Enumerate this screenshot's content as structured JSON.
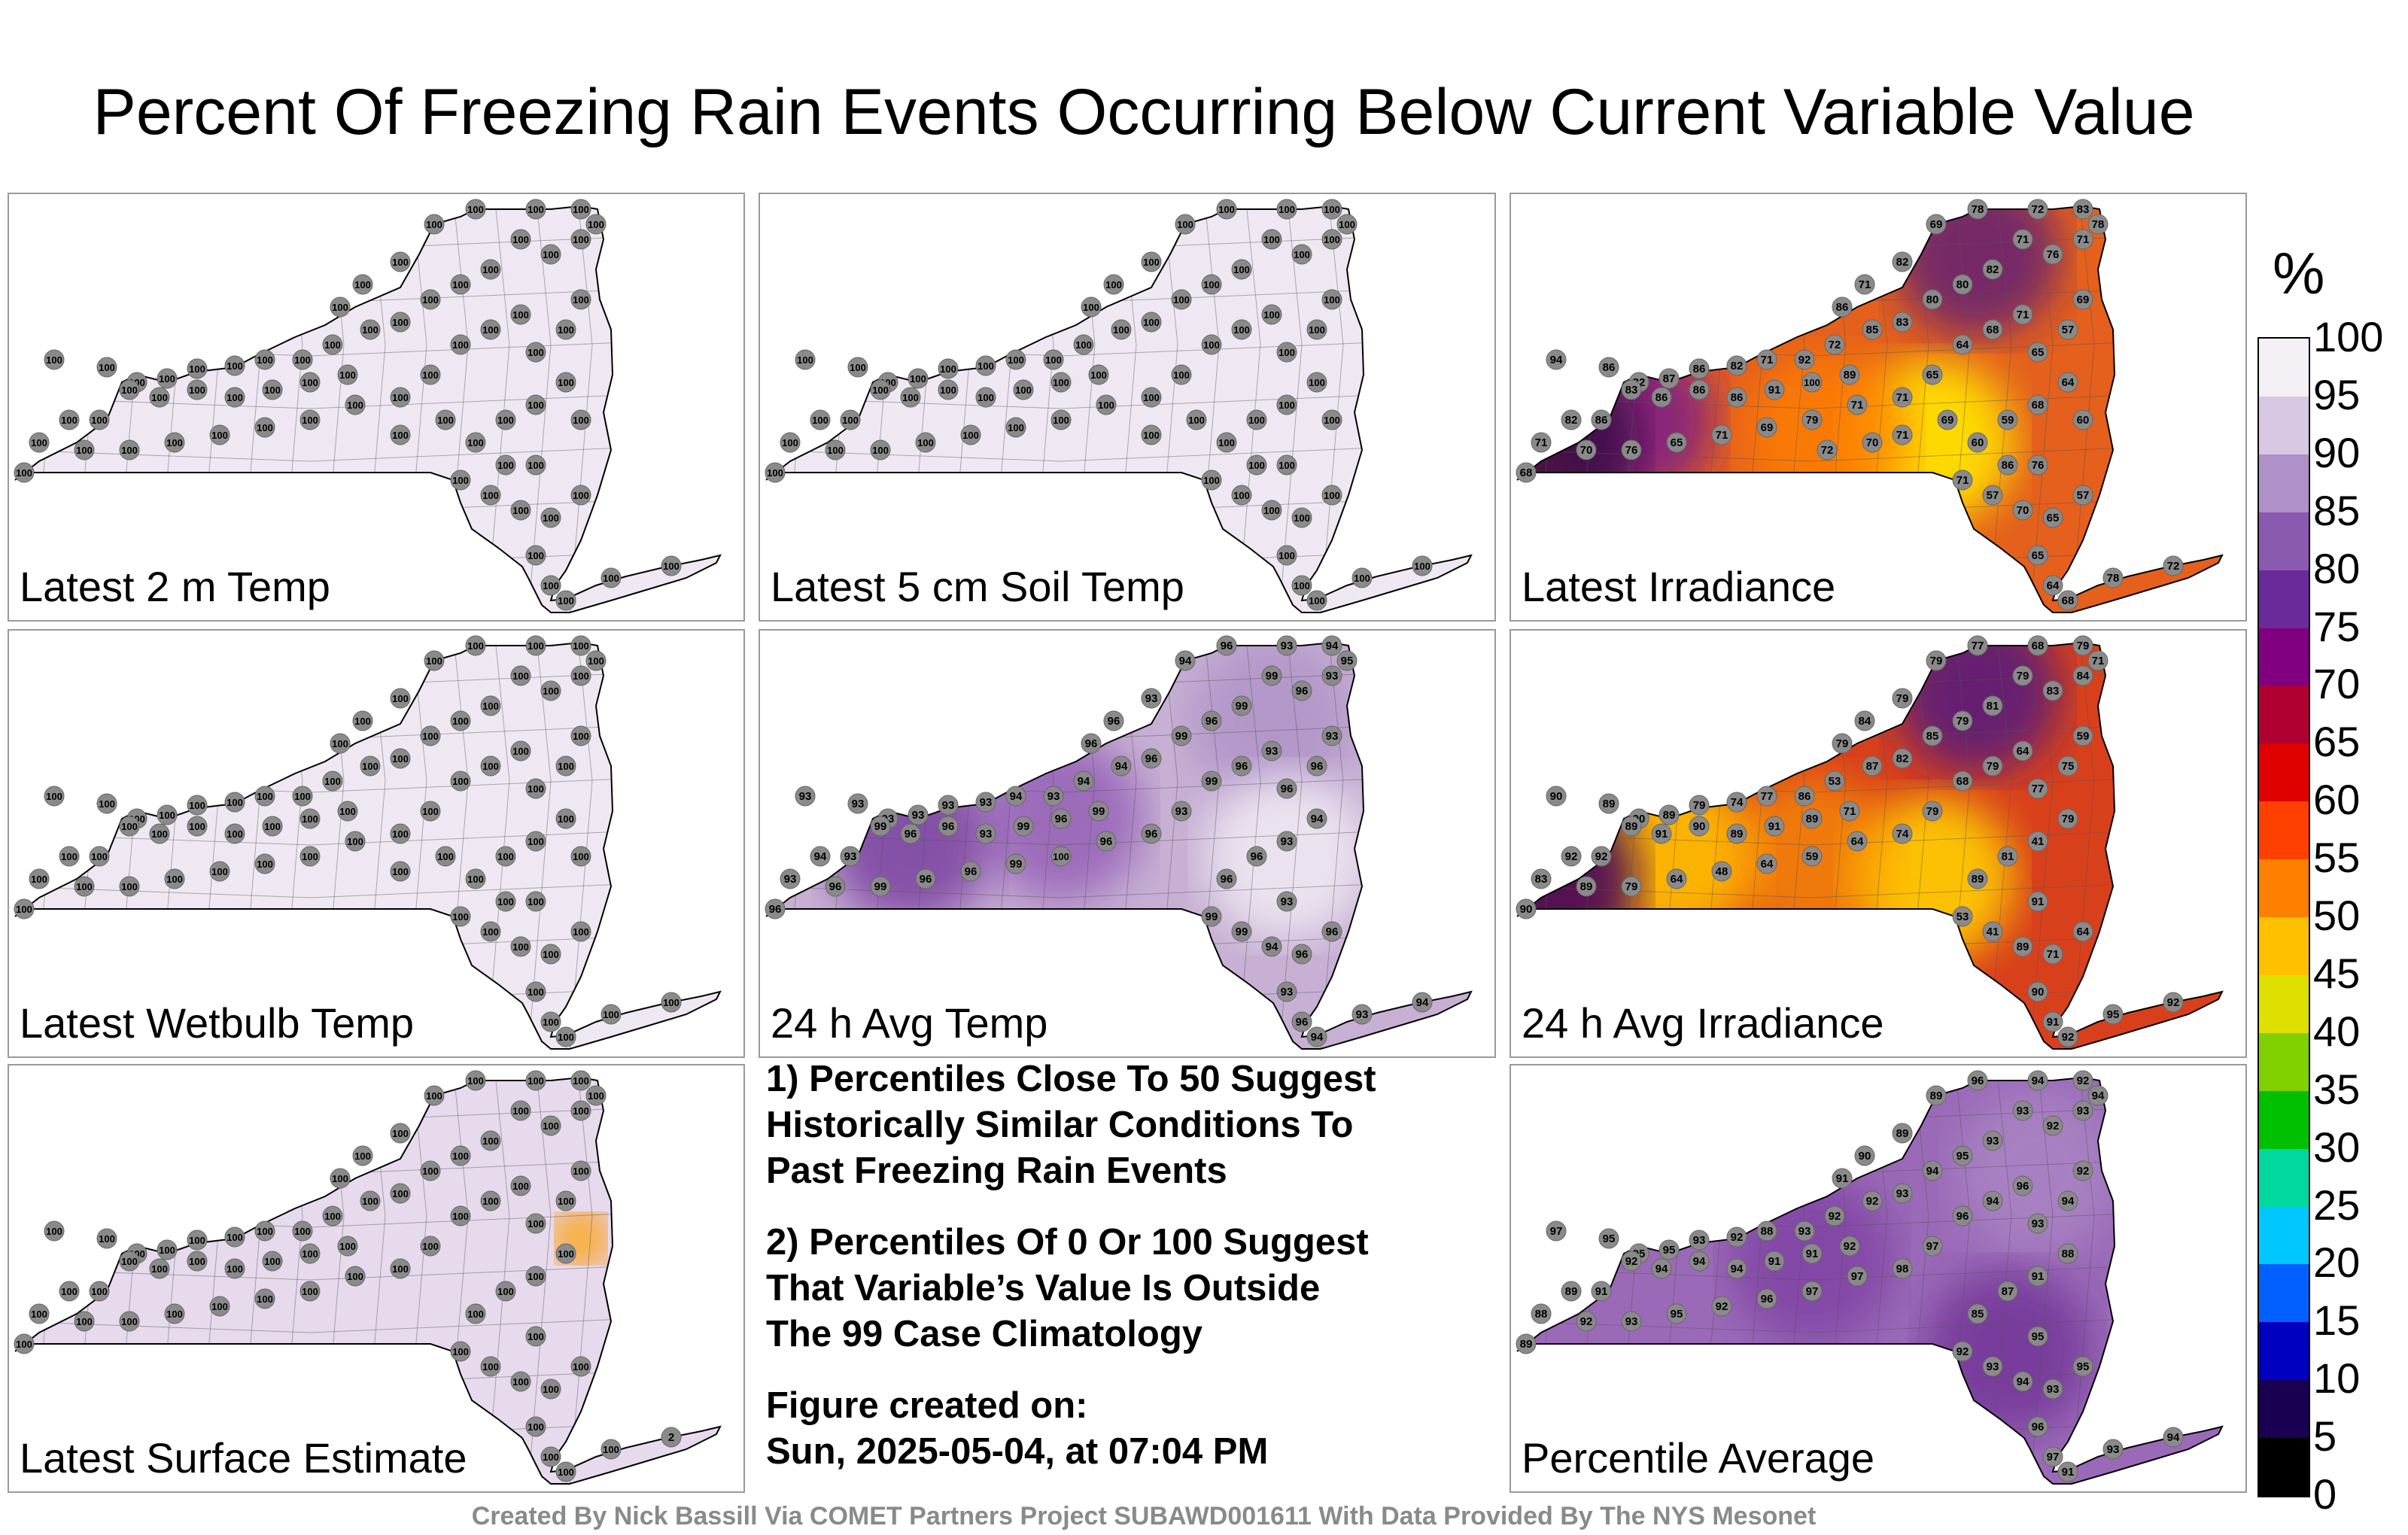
{
  "title": "Percent Of Freezing Rain Events Occurring Below Current Variable Value",
  "panels": [
    {
      "id": "p1",
      "label": "Latest 2 m Temp",
      "fill": "#efe8f2",
      "hot": null
    },
    {
      "id": "p2",
      "label": "Latest 5 cm Soil Temp",
      "fill": "#efe8f2",
      "hot": null
    },
    {
      "id": "p3",
      "label": "Latest Irradiance",
      "fill": "#e4601c",
      "hot": "irr"
    },
    {
      "id": "p4",
      "label": "Latest Wetbulb Temp",
      "fill": "#efe8f2",
      "hot": null
    },
    {
      "id": "p5",
      "label": "24 h Avg Temp",
      "fill": "#c7b0d4",
      "hot": "avg"
    },
    {
      "id": "p6",
      "label": "24 h Avg Irradiance",
      "fill": "#d8401c",
      "hot": "irr2"
    },
    {
      "id": "p7",
      "label": "Latest Surface Estimate",
      "fill": "#e6daec",
      "hot": "surf"
    },
    {
      "id": "p8",
      "label": "Percentile Average",
      "fill": "#9a6ab8",
      "hot": "pavg"
    }
  ],
  "station_values": {
    "p1": [
      "100",
      "100",
      "100",
      "100",
      "100",
      "100",
      "100",
      "100",
      "100",
      "100",
      "100",
      "100",
      "100",
      "100",
      "100",
      "100",
      "100",
      "100",
      "100",
      "100",
      "100",
      "100",
      "100",
      "100",
      "100",
      "100",
      "100",
      "100",
      "100",
      "100",
      "100",
      "100",
      "100",
      "100",
      "100",
      "100",
      "100",
      "100",
      "100",
      "100",
      "100",
      "100",
      "100",
      "100",
      "100",
      "100",
      "100",
      "100",
      "100",
      "100",
      "100",
      "100",
      "100",
      "100",
      "100",
      "100",
      "100",
      "100",
      "100",
      "100",
      "100",
      "100",
      "100",
      "100",
      "100",
      "100",
      "100",
      "100",
      "100",
      "100"
    ],
    "p2": [
      "100",
      "100",
      "100",
      "100",
      "100",
      "100",
      "100",
      "100",
      "100",
      "100",
      "100",
      "100",
      "100",
      "100",
      "100",
      "100",
      "100",
      "100",
      "100",
      "100",
      "100",
      "100",
      "100",
      "100",
      "100",
      "100",
      "100",
      "100",
      "100",
      "100",
      "100",
      "100",
      "100",
      "100",
      "100",
      "100",
      "100",
      "100",
      "100",
      "100",
      "100",
      "100",
      "100",
      "100",
      "100",
      "100",
      "100",
      "100",
      "100",
      "100",
      "100",
      "100",
      "100",
      "100",
      "100",
      "100",
      "100",
      "100",
      "100",
      "100",
      "100",
      "100",
      "100",
      "100",
      "100",
      "100",
      "100",
      "100",
      "100",
      "100"
    ],
    "p3": [
      "94",
      "86",
      "82",
      "87",
      "86",
      "82",
      "71",
      "92",
      "72",
      "86",
      "71",
      "82",
      "69",
      "78",
      "72",
      "83",
      "78",
      "71",
      "76",
      "71",
      "82",
      "80",
      "80",
      "83",
      "85",
      "89",
      "100",
      "91",
      "86",
      "86",
      "86",
      "83",
      "86",
      "82",
      "71",
      "68",
      "70",
      "76",
      "65",
      "71",
      "69",
      "79",
      "71",
      "71",
      "65",
      "64",
      "68",
      "71",
      "65",
      "57",
      "69",
      "64",
      "68",
      "59",
      "60",
      "71",
      "57",
      "70",
      "65",
      "57",
      "65",
      "64",
      "68",
      "78",
      "72",
      "76",
      "86",
      "69",
      "71",
      "60",
      "70",
      "72",
      "68",
      "71",
      "86",
      "65",
      "57",
      "71"
    ],
    "p4": [
      "100",
      "100",
      "100",
      "100",
      "100",
      "100",
      "100",
      "100",
      "100",
      "100",
      "100",
      "100",
      "100",
      "100",
      "100",
      "100",
      "100",
      "100",
      "100",
      "100",
      "100",
      "100",
      "100",
      "100",
      "100",
      "100",
      "100",
      "100",
      "100",
      "100",
      "100",
      "100",
      "100",
      "100",
      "100",
      "100",
      "100",
      "100",
      "100",
      "100",
      "100",
      "100",
      "100",
      "100",
      "100",
      "100",
      "100",
      "100",
      "100",
      "100",
      "100",
      "100",
      "100",
      "100",
      "100",
      "100",
      "100",
      "100",
      "100",
      "100",
      "100",
      "100",
      "100",
      "100",
      "100",
      "100",
      "100",
      "100",
      "100",
      "100"
    ],
    "p5": [
      "93",
      "93",
      "93",
      "93",
      "93",
      "93",
      "94",
      "93",
      "94",
      "96",
      "96",
      "93",
      "94",
      "96",
      "93",
      "94",
      "95",
      "93",
      "96",
      "99",
      "99",
      "96",
      "99",
      "96",
      "94",
      "99",
      "96",
      "99",
      "93",
      "96",
      "96",
      "99",
      "93",
      "94",
      "93",
      "96",
      "96",
      "99",
      "96",
      "96",
      "99",
      "100",
      "96",
      "96",
      "93",
      "99",
      "96",
      "93",
      "96",
      "96",
      "93",
      "94",
      "93",
      "96",
      "96",
      "99",
      "99",
      "94",
      "96",
      "96",
      "93",
      "96",
      "94",
      "93",
      "94",
      "93"
    ],
    "p6": [
      "90",
      "89",
      "90",
      "89",
      "79",
      "74",
      "77",
      "86",
      "53",
      "79",
      "84",
      "79",
      "79",
      "77",
      "68",
      "79",
      "71",
      "84",
      "83",
      "79",
      "81",
      "79",
      "85",
      "82",
      "87",
      "71",
      "89",
      "91",
      "89",
      "90",
      "91",
      "89",
      "92",
      "92",
      "83",
      "90",
      "89",
      "79",
      "64",
      "48",
      "64",
      "59",
      "64",
      "74",
      "79",
      "68",
      "79",
      "64",
      "77",
      "75",
      "59",
      "79",
      "41",
      "81",
      "89",
      "53",
      "41",
      "89",
      "71",
      "64",
      "90",
      "91",
      "92",
      "95",
      "92",
      "91"
    ],
    "p7": [
      "100",
      "100",
      "100",
      "100",
      "100",
      "100",
      "100",
      "100",
      "100",
      "100",
      "100",
      "100",
      "100",
      "100",
      "100",
      "100",
      "100",
      "100",
      "100",
      "100",
      "100",
      "100",
      "100",
      "100",
      "100",
      "100",
      "100",
      "100",
      "100",
      "100",
      "100",
      "100",
      "100",
      "100",
      "100",
      "100",
      "100",
      "100",
      "100",
      "100",
      "100",
      "100",
      "100",
      "100",
      "100",
      "100",
      "100",
      "100",
      "100",
      "100",
      "100",
      "100",
      "100",
      "100",
      "100",
      "100",
      "100",
      "100",
      "100",
      "100",
      "100",
      "100",
      "100",
      "100",
      "2",
      "100"
    ],
    "p8": [
      "97",
      "95",
      "95",
      "95",
      "93",
      "92",
      "88",
      "93",
      "92",
      "91",
      "90",
      "89",
      "89",
      "96",
      "94",
      "92",
      "94",
      "93",
      "92",
      "93",
      "93",
      "95",
      "94",
      "93",
      "92",
      "92",
      "91",
      "91",
      "94",
      "94",
      "94",
      "92",
      "91",
      "89",
      "88",
      "89",
      "92",
      "93",
      "95",
      "92",
      "96",
      "97",
      "97",
      "98",
      "97",
      "96",
      "94",
      "96",
      "93",
      "94",
      "92",
      "88",
      "91",
      "87",
      "85",
      "92",
      "93",
      "94",
      "93",
      "95",
      "96",
      "97",
      "91",
      "93",
      "94",
      "95"
    ]
  },
  "notes": {
    "line1": "1) Percentiles Close To 50 Suggest",
    "line2": "Historically Similar Conditions To",
    "line3": "Past Freezing Rain Events",
    "line4": "2) Percentiles Of 0 Or 100 Suggest",
    "line5": "That Variable’s Value Is Outside",
    "line6": "The 99 Case Climatology",
    "line7": "Figure created on:",
    "line8": "Sun, 2025-05-04, at 07:04 PM"
  },
  "colorbar": {
    "unit": "%",
    "ticks": [
      "100",
      "95",
      "90",
      "85",
      "80",
      "75",
      "70",
      "65",
      "60",
      "55",
      "50",
      "45",
      "40",
      "35",
      "30",
      "25",
      "20",
      "15",
      "10",
      "5",
      "0"
    ],
    "colors": [
      "#000000",
      "#1a0050",
      "#0000c0",
      "#0060ff",
      "#00c8ff",
      "#00d8a0",
      "#00c000",
      "#80d000",
      "#e0e000",
      "#ffc000",
      "#ff8000",
      "#ff4000",
      "#e00000",
      "#b00030",
      "#800080",
      "#6a2a9a",
      "#8a5ab0",
      "#b090c8",
      "#d8c8e4",
      "#f4f0f6"
    ]
  },
  "footer": "Created By Nick Bassill Via COMET Partners Project SUBAWD001611 With Data Provided By The NYS Mesonet"
}
